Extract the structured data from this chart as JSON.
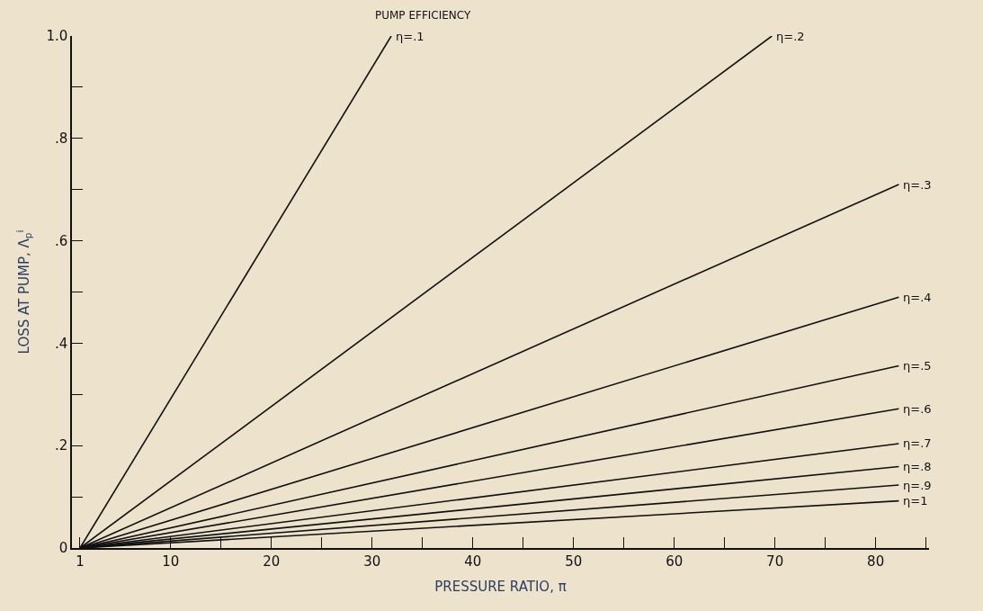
{
  "chart_data": {
    "type": "line",
    "xlabel": "PRESSURE RATIO, π",
    "ylabel": "LOSS AT PUMP, Λ$_{p}$$^{i}$",
    "annotations": [
      "PUMP EFFICIENCY"
    ],
    "series": [
      {
        "name": "η=.1",
        "color": "#111111",
        "x": [
          1,
          31.9
        ],
        "values": [
          0,
          1.0
        ]
      },
      {
        "name": "η=.2",
        "color": "#111111",
        "x": [
          1,
          69.7
        ],
        "values": [
          0,
          1.0
        ]
      },
      {
        "name": "η=.3",
        "color": "#111111",
        "x": [
          1,
          82.3
        ],
        "values": [
          0,
          0.71
        ]
      },
      {
        "name": "η=.4",
        "color": "#111111",
        "x": [
          1,
          82.3
        ],
        "values": [
          0,
          0.49
        ]
      },
      {
        "name": "η=.5",
        "color": "#111111",
        "x": [
          1,
          82.3
        ],
        "values": [
          0,
          0.356
        ]
      },
      {
        "name": "η=.6",
        "color": "#111111",
        "x": [
          1,
          82.3
        ],
        "values": [
          0,
          0.272
        ]
      },
      {
        "name": "η=.7",
        "color": "#111111",
        "x": [
          1,
          82.3
        ],
        "values": [
          0,
          0.204
        ]
      },
      {
        "name": "η=.8",
        "color": "#111111",
        "x": [
          1,
          82.3
        ],
        "values": [
          0,
          0.159
        ]
      },
      {
        "name": "η=.9",
        "color": "#111111",
        "x": [
          1,
          82.3
        ],
        "values": [
          0,
          0.123
        ]
      },
      {
        "name": "η=1",
        "color": "#111111",
        "x": [
          1,
          82.3
        ],
        "values": [
          0,
          0.092
        ]
      }
    ],
    "xlim": [
      0.2,
      85.3
    ],
    "ylim": [
      0,
      1.0
    ],
    "xticks": [
      1,
      10,
      20,
      30,
      40,
      50,
      60,
      70,
      80,
      {
        "value": 15,
        "label": null
      },
      {
        "value": 25,
        "label": null
      },
      {
        "value": 35,
        "label": null
      },
      {
        "value": 45,
        "label": null
      },
      {
        "value": 55,
        "label": null
      },
      {
        "value": 65,
        "label": null
      },
      {
        "value": 75,
        "label": null
      },
      {
        "value": 85,
        "label": null
      }
    ],
    "yticks": [
      {
        "value": 0,
        "label": "0"
      },
      {
        "value": 0.2,
        "label": ".2"
      },
      {
        "value": 0.4,
        "label": ".4"
      },
      {
        "value": 0.6,
        "label": ".6"
      },
      {
        "value": 0.8,
        "label": ".8"
      },
      {
        "value": 1.0,
        "label": "1.0"
      },
      {
        "value": 0.1,
        "label": null
      },
      {
        "value": 0.3,
        "label": null
      },
      {
        "value": 0.5,
        "label": null
      },
      {
        "value": 0.7,
        "label": null
      },
      {
        "value": 0.9,
        "label": null
      }
    ],
    "grid": false,
    "legend": false,
    "marker": "none",
    "line_style": "solid"
  }
}
